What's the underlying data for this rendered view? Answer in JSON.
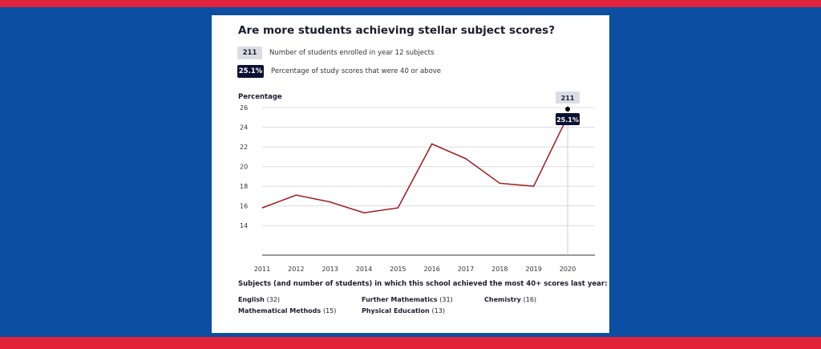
{
  "title": "Are more students achieving stellar subject scores?",
  "legend": {
    "students_badge": "211",
    "students_label": "Number of students enrolled in year 12 subjects",
    "pct_badge": "25.1%",
    "pct_label": "Percentage of study scores that were 40 or above"
  },
  "chart_data": {
    "type": "line",
    "ylabel": "Percentage",
    "x": [
      "2011",
      "2012",
      "2013",
      "2014",
      "2015",
      "2016",
      "2017",
      "2018",
      "2019",
      "2020"
    ],
    "series": [
      {
        "values": [
          15.8,
          17.1,
          16.4,
          15.3,
          15.8,
          22.3,
          20.8,
          18.3,
          18.0,
          25.1
        ]
      }
    ],
    "yticks": [
      14,
      16,
      18,
      20,
      22,
      24,
      26
    ],
    "ylim": [
      11,
      26
    ],
    "grid": true,
    "highlight": {
      "x": "2020",
      "students": "211",
      "pct_label": "25.1%"
    },
    "colors": {
      "line": "#a0191e",
      "grid": "#dddddd",
      "axis": "#333333",
      "badge_dark": "#0b1133",
      "badge_light": "#dadde4"
    }
  },
  "subjects": {
    "heading": "Subjects (and number of students) in which this school achieved the most 40+ scores last year:",
    "items": [
      {
        "name": "English",
        "count": "(32)"
      },
      {
        "name": "Further Mathematics",
        "count": "(31)"
      },
      {
        "name": "Chemistry",
        "count": "(16)"
      },
      {
        "name": "Mathematical Methods",
        "count": "(15)"
      },
      {
        "name": "Physical Education",
        "count": "(13)"
      }
    ]
  }
}
